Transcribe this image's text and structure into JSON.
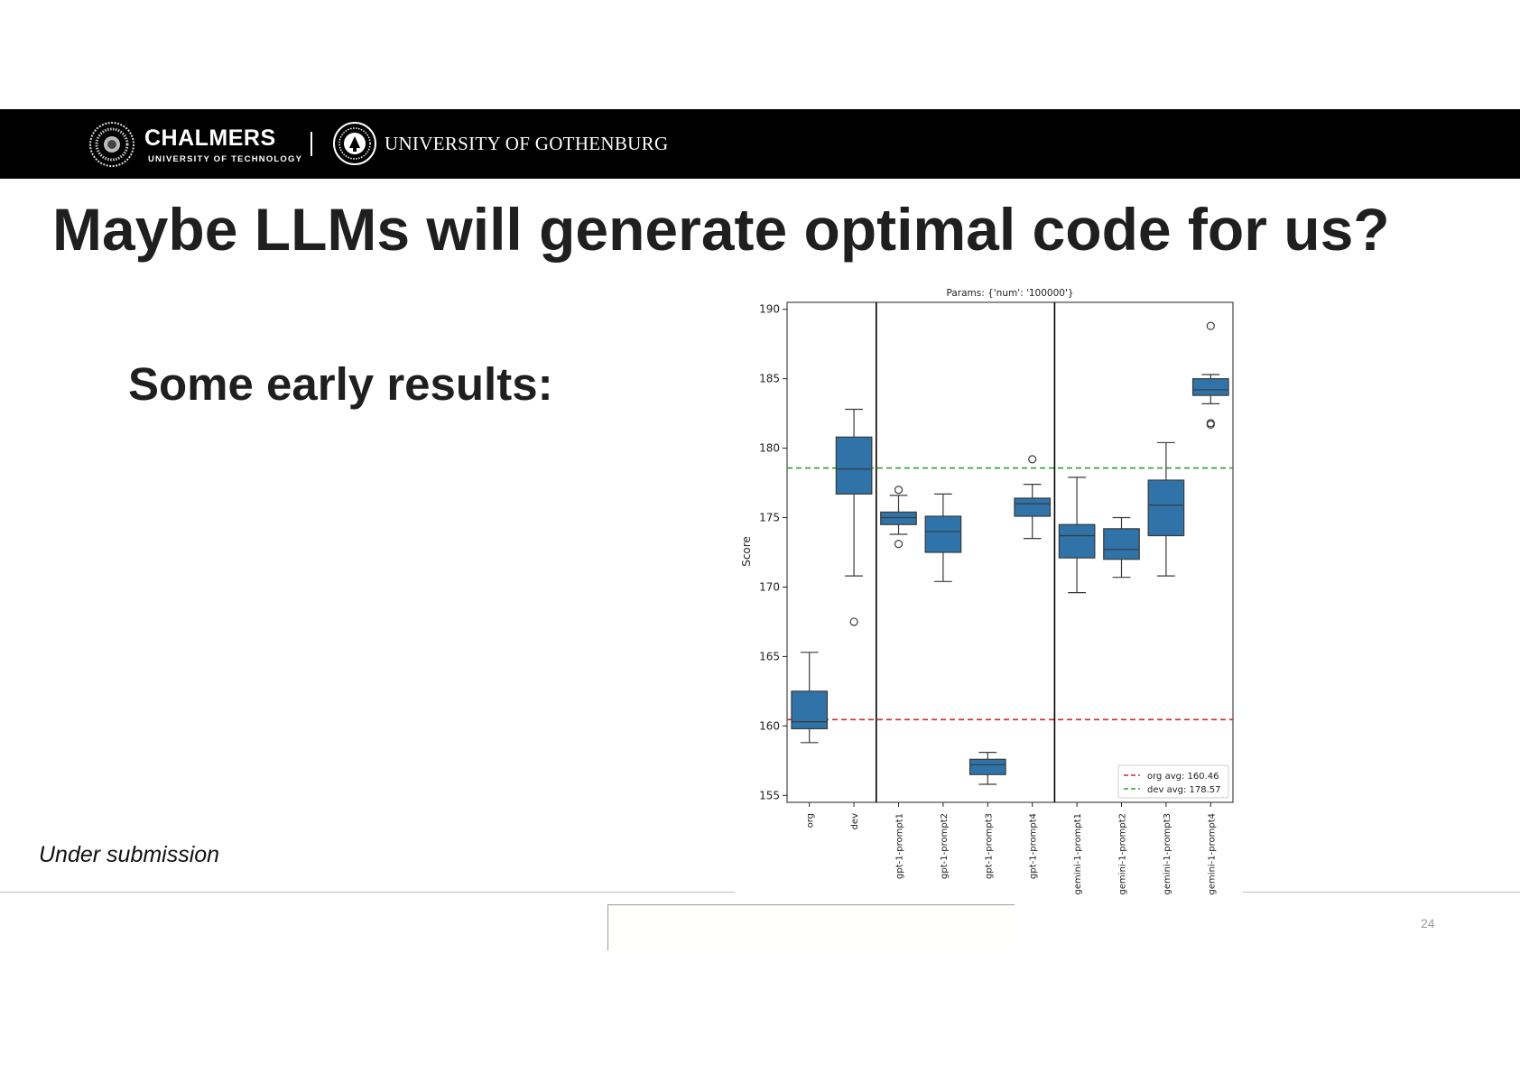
{
  "header": {
    "chalmers_name": "CHALMERS",
    "chalmers_sub": "UNIVERSITY OF TECHNOLOGY",
    "gu_name": "UNIVERSITY OF GOTHENBURG"
  },
  "slide": {
    "title": "Maybe LLMs will generate optimal code for us?",
    "subtitle": "Some early results:",
    "footnote": "Under submission",
    "page_number": "24"
  },
  "chart_data": {
    "type": "box",
    "title": "Params: {'num': '100000'}",
    "xlabel": "",
    "ylabel": "Score",
    "ylim": [
      154.5,
      190.5
    ],
    "yticks": [
      155,
      160,
      165,
      170,
      175,
      180,
      185,
      190
    ],
    "box_color": "#2f73a8",
    "categories": [
      "org",
      "dev",
      "gpt-1-prompt1",
      "gpt-1-prompt2",
      "gpt-1-prompt3",
      "gpt-1-prompt4",
      "gemini-1-prompt1",
      "gemini-1-prompt2",
      "gemini-1-prompt3",
      "gemini-1-prompt4"
    ],
    "boxes": [
      {
        "whisker_low": 158.8,
        "q1": 159.8,
        "median": 160.3,
        "q3": 162.5,
        "whisker_high": 165.3,
        "outliers": []
      },
      {
        "whisker_low": 170.8,
        "q1": 176.7,
        "median": 178.5,
        "q3": 180.8,
        "whisker_high": 182.8,
        "outliers": [
          167.5
        ]
      },
      {
        "whisker_low": 173.8,
        "q1": 174.5,
        "median": 175.0,
        "q3": 175.4,
        "whisker_high": 176.6,
        "outliers": [
          177.0,
          173.1
        ]
      },
      {
        "whisker_low": 170.4,
        "q1": 172.5,
        "median": 174.0,
        "q3": 175.1,
        "whisker_high": 176.7,
        "outliers": []
      },
      {
        "whisker_low": 155.8,
        "q1": 156.5,
        "median": 157.2,
        "q3": 157.6,
        "whisker_high": 158.1,
        "outliers": []
      },
      {
        "whisker_low": 173.5,
        "q1": 175.1,
        "median": 176.0,
        "q3": 176.4,
        "whisker_high": 177.4,
        "outliers": [
          179.2
        ]
      },
      {
        "whisker_low": 169.6,
        "q1": 172.1,
        "median": 173.7,
        "q3": 174.5,
        "whisker_high": 177.9,
        "outliers": []
      },
      {
        "whisker_low": 170.7,
        "q1": 172.0,
        "median": 172.7,
        "q3": 174.2,
        "whisker_high": 175.0,
        "outliers": []
      },
      {
        "whisker_low": 170.8,
        "q1": 173.7,
        "median": 175.9,
        "q3": 177.7,
        "whisker_high": 180.4,
        "outliers": []
      },
      {
        "whisker_low": 183.2,
        "q1": 183.8,
        "median": 184.2,
        "q3": 185.0,
        "whisker_high": 185.3,
        "outliers": [
          188.8,
          181.8,
          181.7
        ]
      }
    ],
    "reference_lines": [
      {
        "label": "org avg: 160.46",
        "value": 160.46,
        "color": "#d62728"
      },
      {
        "label": "dev avg: 178.57",
        "value": 178.57,
        "color": "#2ca02c"
      }
    ],
    "group_separators_after": [
      "dev",
      "gpt-1-prompt4"
    ],
    "legend": {
      "position": "bottom-right"
    },
    "grid": false
  }
}
